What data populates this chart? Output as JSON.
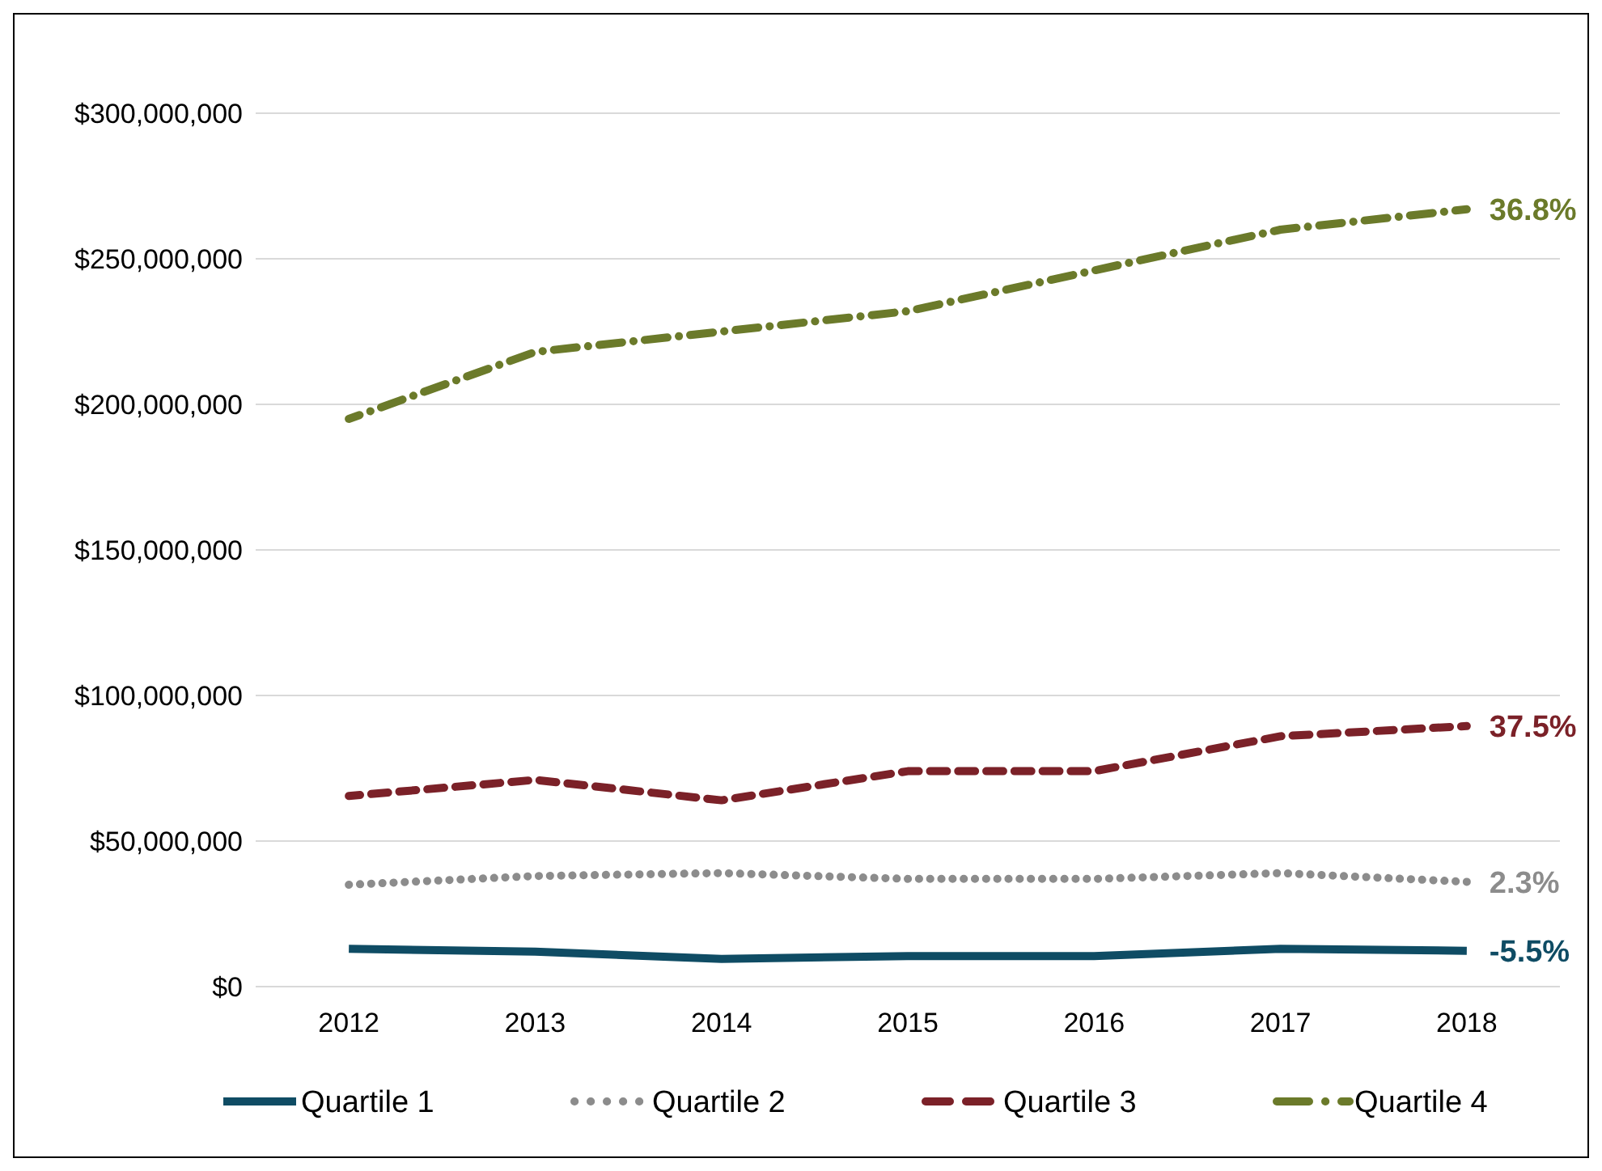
{
  "chart_data": {
    "type": "line",
    "categories": [
      "2012",
      "2013",
      "2014",
      "2015",
      "2016",
      "2017",
      "2018"
    ],
    "series": [
      {
        "name": "Quartile 1",
        "color": "#0f4c64",
        "line_style": "solid",
        "values": [
          13000000,
          12000000,
          9500000,
          10500000,
          10500000,
          13000000,
          12300000
        ]
      },
      {
        "name": "Quartile 2",
        "color": "#8c8c8c",
        "line_style": "dotted",
        "values": [
          35000000,
          38000000,
          39000000,
          37000000,
          37000000,
          39000000,
          36000000
        ]
      },
      {
        "name": "Quartile 3",
        "color": "#7b2128",
        "line_style": "dashed",
        "values": [
          65500000,
          71000000,
          64000000,
          74000000,
          74000000,
          86000000,
          89500000
        ]
      },
      {
        "name": "Quartile 4",
        "color": "#6b7a2a",
        "line_style": "dashdot",
        "values": [
          195000000,
          218000000,
          225000000,
          232000000,
          246000000,
          260000000,
          267000000
        ]
      }
    ],
    "ylim": [
      0,
      300000000
    ],
    "yticks": [
      {
        "value": 0,
        "label": "$0"
      },
      {
        "value": 50000000,
        "label": "$50,000,000"
      },
      {
        "value": 100000000,
        "label": "$100,000,000"
      },
      {
        "value": 150000000,
        "label": "$150,000,000"
      },
      {
        "value": 200000000,
        "label": "$200,000,000"
      },
      {
        "value": 250000000,
        "label": "$250,000,000"
      },
      {
        "value": 300000000,
        "label": "$300,000,000"
      }
    ],
    "grid": "y",
    "legend": "bottom",
    "marker": "none",
    "annotations": [
      {
        "text": "-5.5%",
        "x": "2018",
        "y": 12300000
      },
      {
        "text": "2.3%",
        "x": "2018",
        "y": 36000000
      },
      {
        "text": "37.5%",
        "x": "2018",
        "y": 89500000
      },
      {
        "text": "36.8%",
        "x": "2018",
        "y": 267000000
      }
    ]
  }
}
